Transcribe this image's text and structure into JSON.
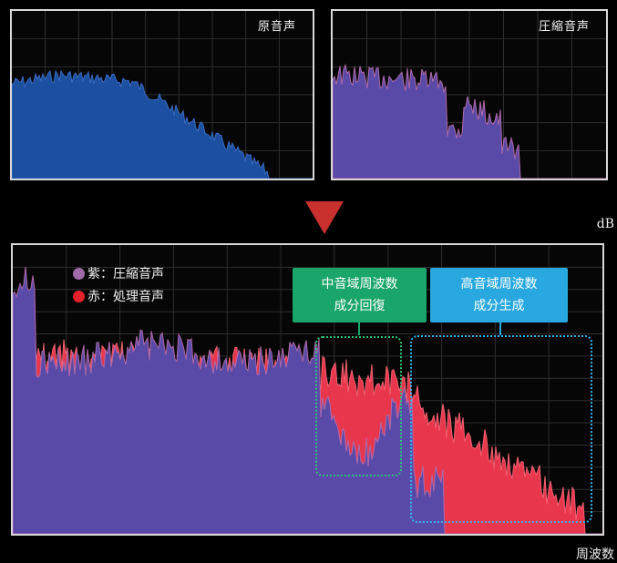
{
  "panels": {
    "original": {
      "title": "原音声"
    },
    "compressed": {
      "title": "圧縮音声"
    }
  },
  "axis": {
    "ylabel": "dB",
    "xlabel": "周波数"
  },
  "legend": {
    "purple": {
      "label": "紫：圧縮音声",
      "color": "#a06aa8"
    },
    "red": {
      "label": "赤：処理音声",
      "color": "#e8202c"
    }
  },
  "callouts": {
    "mid": {
      "line1": "中音域周波数",
      "line2": "成分回復",
      "color": "#1aa66a"
    },
    "high": {
      "line1": "高音域周波数",
      "line2": "成分生成",
      "color": "#29a8e0"
    }
  },
  "colors": {
    "original_fill": "#1c4fa0",
    "compressed_fill": "#5a4aa8",
    "processed_fill": "#e8364c",
    "grid": "#3a3a3a"
  }
}
